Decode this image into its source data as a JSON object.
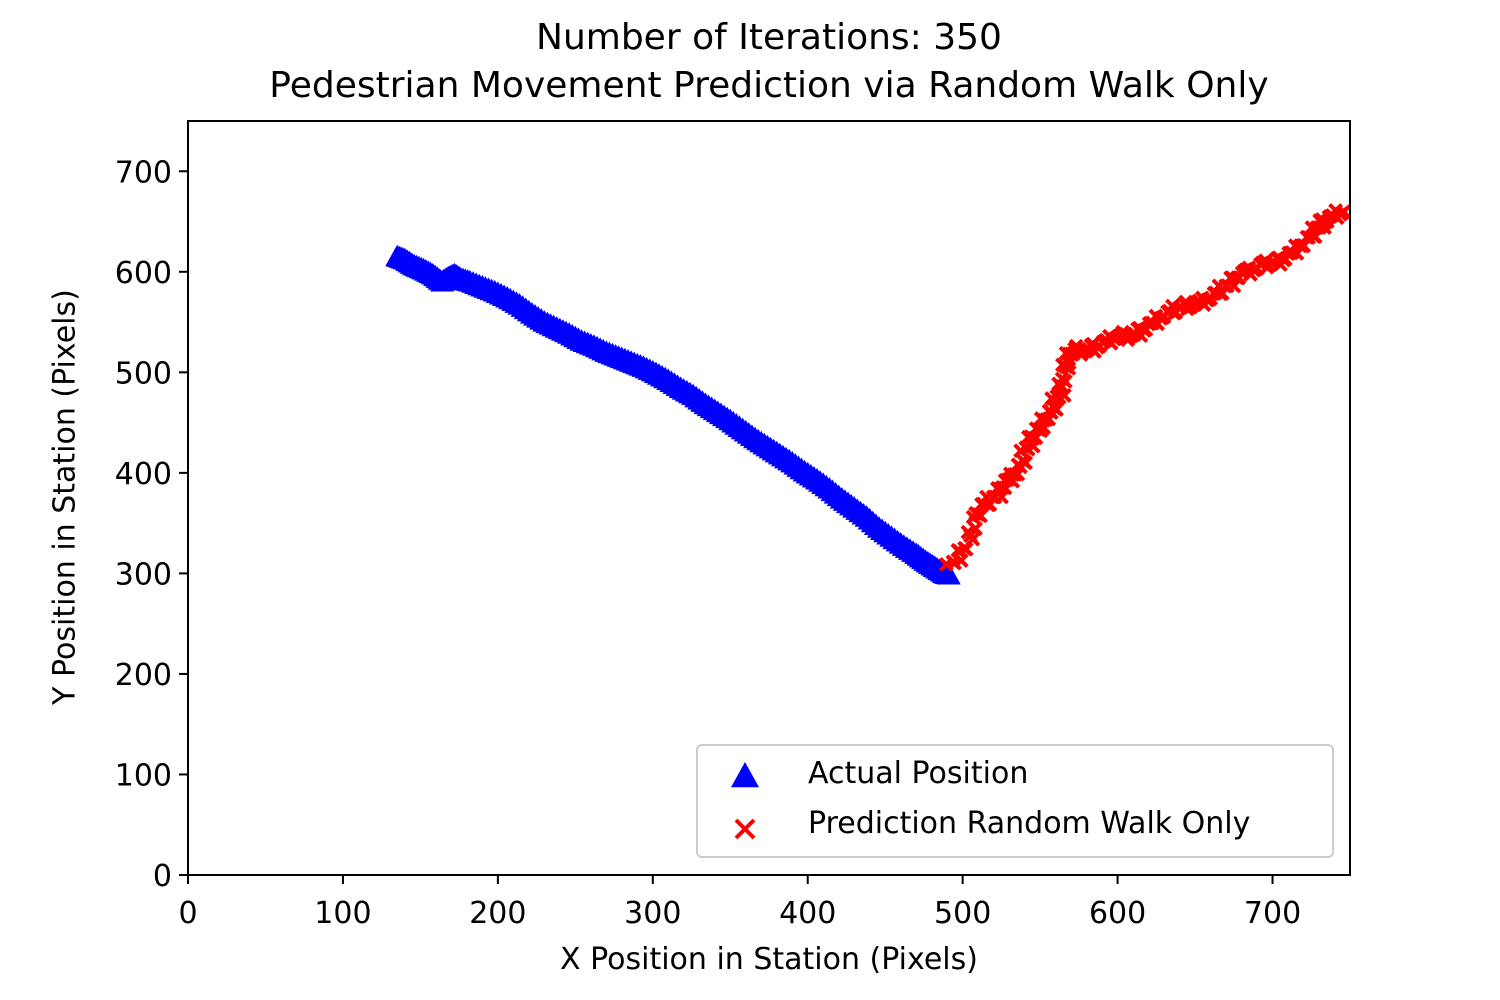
{
  "chart_data": {
    "type": "scatter",
    "title": "Number of Iterations: 350",
    "subtitle": "Pedestrian Movement Prediction via Random Walk Only",
    "xlabel": "X Position in Station (Pixels)",
    "ylabel": "Y Position in Station (Pixels)",
    "xlim": [
      0,
      750
    ],
    "ylim": [
      0,
      750
    ],
    "xticks": [
      0,
      100,
      200,
      300,
      400,
      500,
      600,
      700
    ],
    "yticks": [
      0,
      100,
      200,
      300,
      400,
      500,
      600,
      700
    ],
    "grid": false,
    "legend_position": "bottom-right",
    "series": [
      {
        "name": "Actual Position",
        "marker": "triangle",
        "color": "#0000ff",
        "x": [
          135,
          140,
          146,
          152,
          158,
          164,
          168,
          172,
          176,
          182,
          190,
          198,
          206,
          214,
          222,
          230,
          238,
          246,
          254,
          262,
          270,
          278,
          286,
          294,
          302,
          310,
          318,
          326,
          334,
          342,
          350,
          358,
          366,
          374,
          382,
          390,
          398,
          406,
          414,
          422,
          430,
          438,
          446,
          454,
          462,
          470,
          476,
          482,
          488,
          492
        ],
        "y": [
          615,
          612,
          606,
          602,
          597,
          590,
          594,
          597,
          593,
          590,
          585,
          580,
          574,
          567,
          558,
          550,
          544,
          538,
          531,
          526,
          520,
          515,
          510,
          505,
          499,
          492,
          484,
          477,
          468,
          460,
          452,
          443,
          434,
          426,
          418,
          410,
          401,
          393,
          384,
          374,
          365,
          356,
          345,
          336,
          327,
          319,
          312,
          306,
          300,
          298
        ]
      },
      {
        "name": "Prediction Random Walk Only",
        "marker": "x",
        "color": "#ff0000",
        "x": [
          492,
          498,
          504,
          508,
          512,
          518,
          524,
          528,
          532,
          536,
          540,
          544,
          548,
          552,
          556,
          560,
          564,
          566,
          568,
          572,
          578,
          584,
          590,
          596,
          602,
          608,
          614,
          620,
          626,
          632,
          638,
          644,
          650,
          656,
          662,
          668,
          674,
          680,
          686,
          692,
          698,
          704,
          710,
          716,
          722,
          728,
          732,
          736,
          742,
          748
        ],
        "y": [
          305,
          318,
          330,
          352,
          365,
          372,
          380,
          390,
          395,
          402,
          418,
          432,
          438,
          450,
          456,
          470,
          482,
          500,
          515,
          522,
          519,
          524,
          528,
          532,
          536,
          534,
          540,
          545,
          552,
          557,
          562,
          566,
          567,
          570,
          575,
          582,
          590,
          598,
          600,
          605,
          607,
          610,
          615,
          622,
          630,
          640,
          648,
          652,
          657,
          660
        ]
      }
    ]
  }
}
